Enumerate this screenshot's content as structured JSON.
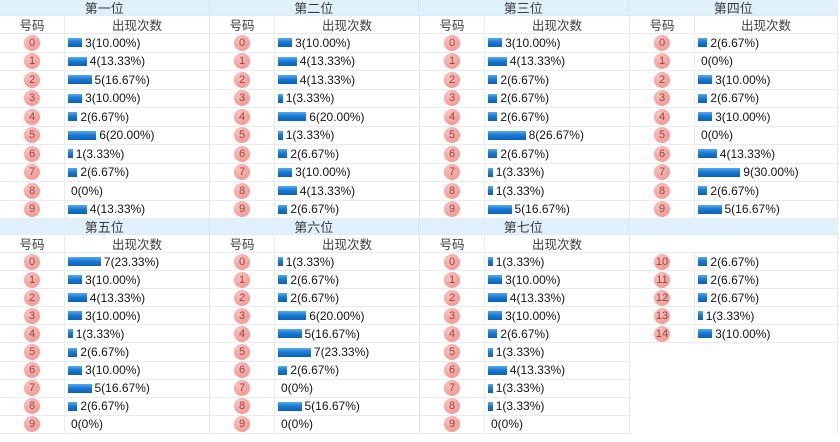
{
  "ui": {
    "number_header": "号码",
    "count_header": "出现次数",
    "bar_color": "#1b7ad3",
    "badge_color": "#f5a39e",
    "band_color": "#e1f1fb"
  },
  "chart_data": [
    {
      "type": "bar",
      "title": "第一位",
      "xlabel": "号码",
      "ylabel": "出现次数",
      "categories": [
        "0",
        "1",
        "2",
        "3",
        "4",
        "5",
        "6",
        "7",
        "8",
        "9"
      ],
      "values": [
        3,
        4,
        5,
        3,
        2,
        6,
        1,
        2,
        0,
        4
      ],
      "value_labels": [
        "3(10.00%)",
        "4(13.33%)",
        "5(16.67%)",
        "3(10.00%)",
        "2(6.67%)",
        "6(20.00%)",
        "1(3.33%)",
        "2(6.67%)",
        "0(0%)",
        "4(13.33%)"
      ]
    },
    {
      "type": "bar",
      "title": "第二位",
      "xlabel": "号码",
      "ylabel": "出现次数",
      "categories": [
        "0",
        "1",
        "2",
        "3",
        "4",
        "5",
        "6",
        "7",
        "8",
        "9"
      ],
      "values": [
        3,
        4,
        4,
        1,
        6,
        1,
        2,
        3,
        4,
        2
      ],
      "value_labels": [
        "3(10.00%)",
        "4(13.33%)",
        "4(13.33%)",
        "1(3.33%)",
        "6(20.00%)",
        "1(3.33%)",
        "2(6.67%)",
        "3(10.00%)",
        "4(13.33%)",
        "2(6.67%)"
      ]
    },
    {
      "type": "bar",
      "title": "第三位",
      "xlabel": "号码",
      "ylabel": "出现次数",
      "categories": [
        "0",
        "1",
        "2",
        "3",
        "4",
        "5",
        "6",
        "7",
        "8",
        "9"
      ],
      "values": [
        3,
        4,
        2,
        2,
        2,
        8,
        2,
        1,
        1,
        5
      ],
      "value_labels": [
        "3(10.00%)",
        "4(13.33%)",
        "2(6.67%)",
        "2(6.67%)",
        "2(6.67%)",
        "8(26.67%)",
        "2(6.67%)",
        "1(3.33%)",
        "1(3.33%)",
        "5(16.67%)"
      ]
    },
    {
      "type": "bar",
      "title": "第四位",
      "xlabel": "号码",
      "ylabel": "出现次数",
      "categories": [
        "0",
        "1",
        "2",
        "3",
        "4",
        "5",
        "6",
        "7",
        "8",
        "9"
      ],
      "values": [
        2,
        0,
        3,
        2,
        3,
        0,
        4,
        9,
        2,
        5
      ],
      "value_labels": [
        "2(6.67%)",
        "0(0%)",
        "3(10.00%)",
        "2(6.67%)",
        "3(10.00%)",
        "0(0%)",
        "4(13.33%)",
        "9(30.00%)",
        "2(6.67%)",
        "5(16.67%)"
      ]
    },
    {
      "type": "bar",
      "title": "第五位",
      "xlabel": "号码",
      "ylabel": "出现次数",
      "categories": [
        "0",
        "1",
        "2",
        "3",
        "4",
        "5",
        "6",
        "7",
        "8",
        "9"
      ],
      "values": [
        7,
        3,
        4,
        3,
        1,
        2,
        3,
        5,
        2,
        0
      ],
      "value_labels": [
        "7(23.33%)",
        "3(10.00%)",
        "4(13.33%)",
        "3(10.00%)",
        "1(3.33%)",
        "2(6.67%)",
        "3(10.00%)",
        "5(16.67%)",
        "2(6.67%)",
        "0(0%)"
      ]
    },
    {
      "type": "bar",
      "title": "第六位",
      "xlabel": "号码",
      "ylabel": "出现次数",
      "categories": [
        "0",
        "1",
        "2",
        "3",
        "4",
        "5",
        "6",
        "7",
        "8",
        "9"
      ],
      "values": [
        1,
        2,
        2,
        6,
        5,
        7,
        2,
        0,
        5,
        0
      ],
      "value_labels": [
        "1(3.33%)",
        "2(6.67%)",
        "2(6.67%)",
        "6(20.00%)",
        "5(16.67%)",
        "7(23.33%)",
        "2(6.67%)",
        "0(0%)",
        "5(16.67%)",
        "0(0%)"
      ]
    },
    {
      "type": "bar",
      "title": "第七位",
      "xlabel": "号码",
      "ylabel": "出现次数",
      "categories": [
        "0",
        "1",
        "2",
        "3",
        "4",
        "5",
        "6",
        "7",
        "8",
        "9"
      ],
      "values": [
        1,
        3,
        4,
        3,
        2,
        1,
        4,
        1,
        1,
        0
      ],
      "value_labels": [
        "1(3.33%)",
        "3(10.00%)",
        "4(13.33%)",
        "3(10.00%)",
        "2(6.67%)",
        "1(3.33%)",
        "4(13.33%)",
        "1(3.33%)",
        "1(3.33%)",
        "0(0%)"
      ]
    },
    {
      "type": "bar",
      "title": "",
      "xlabel": "",
      "ylabel": "",
      "categories": [
        "10",
        "11",
        "12",
        "13",
        "14"
      ],
      "values": [
        2,
        2,
        2,
        1,
        3
      ],
      "value_labels": [
        "2(6.67%)",
        "2(6.67%)",
        "2(6.67%)",
        "1(3.33%)",
        "3(10.00%)"
      ]
    }
  ]
}
